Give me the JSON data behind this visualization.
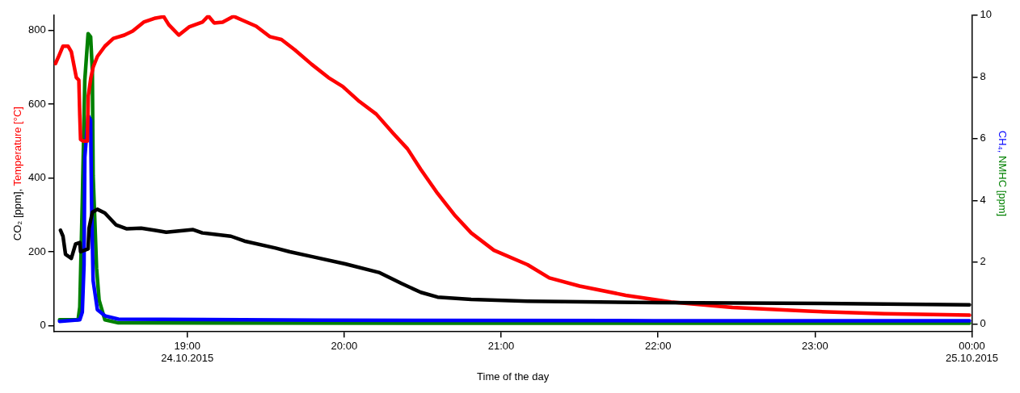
{
  "chart_data": {
    "type": "line",
    "xlabel": "Time of the day",
    "ylabel": "CO₂ [ppm], Temperature [°C]",
    "y2label": "CH₄, NMHC [ppm]",
    "xlim": [
      18.15,
      24.0
    ],
    "xticks": [
      {
        "value": 19,
        "label": "19:00\n24.10.2015"
      },
      {
        "value": 20,
        "label": "20:00"
      },
      {
        "value": 21,
        "label": "21:00"
      },
      {
        "value": 22,
        "label": "22:00"
      },
      {
        "value": 23,
        "label": "23:00"
      },
      {
        "value": 24,
        "label": "00:00\n25.10.2015"
      }
    ],
    "ylim": [
      -17,
      841
    ],
    "yticks": [
      0,
      200,
      400,
      600,
      800
    ],
    "y2lim": [
      -0.26,
      10
    ],
    "y2ticks": [
      0,
      2,
      4,
      6,
      8,
      10
    ],
    "grid": false,
    "legend": false,
    "series": [
      {
        "color": "#000000",
        "x": [
          18.192,
          18.208,
          18.224,
          18.261,
          18.288,
          18.315,
          18.32,
          18.368,
          18.374,
          18.395,
          18.427,
          18.475,
          18.545,
          18.615,
          18.706,
          18.797,
          18.866,
          19.037,
          19.096,
          19.278,
          19.364,
          19.562,
          19.653,
          19.792,
          20.006,
          20.221,
          20.365,
          20.488,
          20.595,
          20.809,
          21.168,
          21.998,
          23.042,
          23.984
        ],
        "values": [
          258,
          242,
          193,
          182,
          221,
          225,
          200,
          208,
          264,
          307,
          315,
          305,
          273,
          262,
          264,
          258,
          253,
          260,
          251,
          242,
          229,
          210,
          200,
          187,
          167,
          144,
          114,
          90,
          77,
          71,
          66,
          62,
          60,
          56
        ]
      },
      {
        "color": "#ff0000",
        "x": [
          18.16,
          18.181,
          18.208,
          18.24,
          18.261,
          18.293,
          18.309,
          18.315,
          18.32,
          18.336,
          18.363,
          18.369,
          18.385,
          18.4,
          18.427,
          18.475,
          18.529,
          18.599,
          18.652,
          18.722,
          18.797,
          18.85,
          18.882,
          18.946,
          19.011,
          19.096,
          19.134,
          19.171,
          19.225,
          19.294,
          19.348,
          19.439,
          19.525,
          19.6,
          19.685,
          19.792,
          19.899,
          19.99,
          20.097,
          20.204,
          20.312,
          20.403,
          20.488,
          20.595,
          20.702,
          20.809,
          20.954,
          21.168,
          21.307,
          21.5,
          21.794,
          22.083,
          22.474,
          22.956,
          23.443,
          23.984
        ],
        "values": [
          710,
          730,
          757,
          757,
          742,
          672,
          665,
          569,
          504,
          500,
          500,
          622,
          670,
          700,
          729,
          757,
          778,
          787,
          798,
          822,
          833,
          837,
          815,
          787,
          809,
          822,
          839,
          820,
          822,
          838,
          828,
          811,
          783,
          775,
          747,
          708,
          672,
          648,
          607,
          573,
          521,
          479,
          423,
          358,
          300,
          251,
          204,
          165,
          129,
          107,
          82,
          64,
          49,
          39,
          32,
          28
        ]
      },
      {
        "color": "#0000ff",
        "axis": "y2",
        "x": [
          18.186,
          18.315,
          18.331,
          18.342,
          18.347,
          18.368,
          18.384,
          18.39,
          18.4,
          18.427,
          18.475,
          18.561,
          19.83,
          21.971,
          23.984
        ],
        "values": [
          0.08,
          0.13,
          0.38,
          1.92,
          5.4,
          6.75,
          6.6,
          3.95,
          1.4,
          0.46,
          0.26,
          0.15,
          0.12,
          0.1,
          0.1
        ]
      },
      {
        "color": "#008000",
        "axis": "y2",
        "x": [
          18.186,
          18.304,
          18.315,
          18.331,
          18.347,
          18.368,
          18.384,
          18.395,
          18.4,
          18.422,
          18.438,
          18.475,
          18.561,
          20.9,
          23.984
        ],
        "values": [
          0.13,
          0.13,
          0.54,
          3.95,
          7.9,
          9.4,
          9.3,
          8.2,
          4.8,
          1.8,
          0.77,
          0.13,
          0.03,
          0.02,
          0.02
        ]
      }
    ]
  }
}
